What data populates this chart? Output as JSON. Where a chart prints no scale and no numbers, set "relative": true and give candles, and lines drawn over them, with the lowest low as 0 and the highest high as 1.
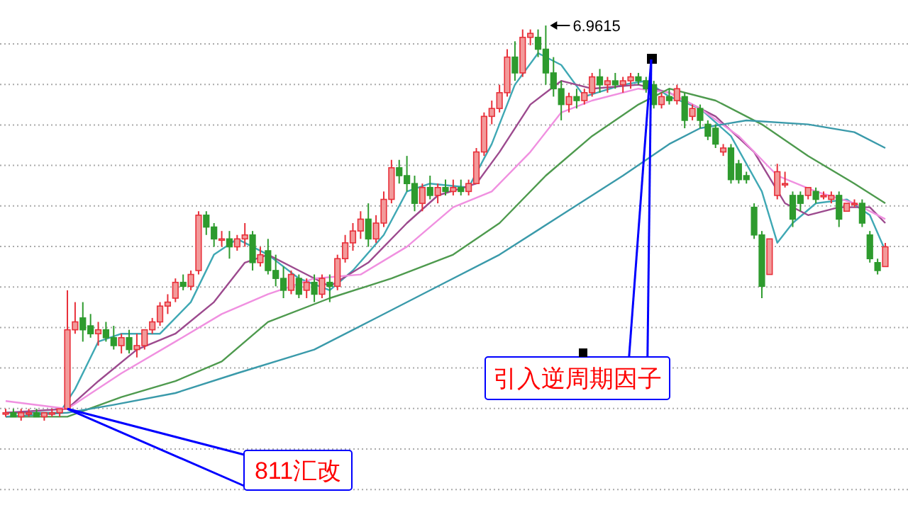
{
  "chart_data": {
    "type": "candlestick",
    "relative": true,
    "grid": true,
    "categories": [
      null,
      null,
      null,
      null,
      null,
      null,
      null,
      null,
      null,
      null,
      null,
      null,
      null,
      null,
      null,
      null,
      null,
      null,
      null,
      null,
      null,
      null,
      null,
      null,
      null,
      null,
      null,
      null,
      null,
      null,
      null,
      null,
      null,
      null,
      null,
      null,
      null,
      null,
      null,
      null,
      null,
      null,
      null,
      null,
      null,
      null,
      null,
      null,
      null,
      null,
      null,
      null,
      null,
      null,
      null,
      null,
      null,
      null,
      null,
      null,
      null,
      null,
      null,
      null,
      null,
      null,
      null,
      null,
      null,
      null,
      null,
      null,
      null,
      null,
      null,
      null,
      null,
      null,
      null,
      null,
      null,
      null,
      null,
      null,
      null,
      null,
      null,
      null,
      null,
      null,
      null,
      null,
      null,
      null,
      null,
      null,
      null,
      null,
      null,
      null,
      null,
      null,
      null,
      null,
      null,
      null,
      null,
      null,
      null,
      null,
      null,
      null,
      null,
      null,
      null
    ],
    "ohlc": [
      [
        0.02,
        0.03,
        0.01,
        0.02
      ],
      [
        0.02,
        0.03,
        0.01,
        0.01
      ],
      [
        0.01,
        0.03,
        0.0,
        0.02
      ],
      [
        0.02,
        0.03,
        0.01,
        0.02
      ],
      [
        0.02,
        0.03,
        0.01,
        0.01
      ],
      [
        0.01,
        0.02,
        0.0,
        0.02
      ],
      [
        0.02,
        0.03,
        0.01,
        0.02
      ],
      [
        0.02,
        0.03,
        0.01,
        0.03
      ],
      [
        0.03,
        0.33,
        0.03,
        0.23
      ],
      [
        0.23,
        0.3,
        0.22,
        0.25
      ],
      [
        0.26,
        0.3,
        0.2,
        0.23
      ],
      [
        0.24,
        0.27,
        0.21,
        0.22
      ],
      [
        0.22,
        0.25,
        0.19,
        0.23
      ],
      [
        0.23,
        0.25,
        0.2,
        0.21
      ],
      [
        0.21,
        0.24,
        0.18,
        0.19
      ],
      [
        0.19,
        0.22,
        0.17,
        0.21
      ],
      [
        0.21,
        0.23,
        0.17,
        0.18
      ],
      [
        0.18,
        0.22,
        0.16,
        0.19
      ],
      [
        0.19,
        0.23,
        0.18,
        0.23
      ],
      [
        0.23,
        0.26,
        0.22,
        0.25
      ],
      [
        0.25,
        0.3,
        0.24,
        0.29
      ],
      [
        0.29,
        0.32,
        0.27,
        0.3
      ],
      [
        0.31,
        0.36,
        0.3,
        0.35
      ],
      [
        0.35,
        0.37,
        0.33,
        0.34
      ],
      [
        0.34,
        0.38,
        0.33,
        0.37
      ],
      [
        0.38,
        0.53,
        0.37,
        0.52
      ],
      [
        0.52,
        0.53,
        0.47,
        0.49
      ],
      [
        0.49,
        0.5,
        0.44,
        0.46
      ],
      [
        0.46,
        0.48,
        0.44,
        0.46
      ],
      [
        0.46,
        0.48,
        0.41,
        0.44
      ],
      [
        0.44,
        0.47,
        0.43,
        0.46
      ],
      [
        0.46,
        0.5,
        0.44,
        0.47
      ],
      [
        0.47,
        0.48,
        0.38,
        0.4
      ],
      [
        0.4,
        0.44,
        0.39,
        0.42
      ],
      [
        0.43,
        0.46,
        0.37,
        0.38
      ],
      [
        0.38,
        0.42,
        0.34,
        0.36
      ],
      [
        0.36,
        0.39,
        0.31,
        0.33
      ],
      [
        0.33,
        0.38,
        0.32,
        0.37
      ],
      [
        0.36,
        0.37,
        0.31,
        0.32
      ],
      [
        0.33,
        0.36,
        0.31,
        0.35
      ],
      [
        0.35,
        0.37,
        0.3,
        0.32
      ],
      [
        0.32,
        0.37,
        0.31,
        0.36
      ],
      [
        0.35,
        0.37,
        0.3,
        0.34
      ],
      [
        0.34,
        0.42,
        0.33,
        0.41
      ],
      [
        0.41,
        0.47,
        0.4,
        0.45
      ],
      [
        0.45,
        0.5,
        0.43,
        0.48
      ],
      [
        0.48,
        0.53,
        0.46,
        0.51
      ],
      [
        0.51,
        0.55,
        0.44,
        0.46
      ],
      [
        0.46,
        0.52,
        0.45,
        0.5
      ],
      [
        0.5,
        0.58,
        0.49,
        0.56
      ],
      [
        0.56,
        0.66,
        0.55,
        0.64
      ],
      [
        0.64,
        0.66,
        0.6,
        0.62
      ],
      [
        0.62,
        0.67,
        0.58,
        0.6
      ],
      [
        0.6,
        0.62,
        0.53,
        0.55
      ],
      [
        0.55,
        0.6,
        0.53,
        0.59
      ],
      [
        0.59,
        0.62,
        0.56,
        0.57
      ],
      [
        0.57,
        0.6,
        0.55,
        0.59
      ],
      [
        0.59,
        0.61,
        0.57,
        0.58
      ],
      [
        0.58,
        0.61,
        0.57,
        0.59
      ],
      [
        0.59,
        0.61,
        0.57,
        0.58
      ],
      [
        0.58,
        0.61,
        0.57,
        0.6
      ],
      [
        0.6,
        0.69,
        0.6,
        0.68
      ],
      [
        0.68,
        0.78,
        0.67,
        0.77
      ],
      [
        0.77,
        0.81,
        0.75,
        0.79
      ],
      [
        0.79,
        0.85,
        0.78,
        0.83
      ],
      [
        0.83,
        0.94,
        0.82,
        0.92
      ],
      [
        0.92,
        0.96,
        0.86,
        0.88
      ],
      [
        0.88,
        0.99,
        0.87,
        0.97
      ],
      [
        0.97,
        0.99,
        0.95,
        0.98
      ],
      [
        0.97,
        0.99,
        0.92,
        0.94
      ],
      [
        0.94,
        1.0,
        0.85,
        0.88
      ],
      [
        0.88,
        0.92,
        0.82,
        0.84
      ],
      [
        0.84,
        0.86,
        0.76,
        0.8
      ],
      [
        0.8,
        0.83,
        0.78,
        0.82
      ],
      [
        0.82,
        0.84,
        0.79,
        0.81
      ],
      [
        0.81,
        0.84,
        0.8,
        0.83
      ],
      [
        0.83,
        0.88,
        0.82,
        0.87
      ],
      [
        0.87,
        0.89,
        0.83,
        0.85
      ],
      [
        0.85,
        0.87,
        0.83,
        0.86
      ],
      [
        0.86,
        0.88,
        0.84,
        0.85
      ],
      [
        0.85,
        0.87,
        0.83,
        0.86
      ],
      [
        0.86,
        0.88,
        0.84,
        0.87
      ],
      [
        0.87,
        0.88,
        0.85,
        0.86
      ],
      [
        0.86,
        0.87,
        0.83,
        0.84
      ],
      [
        0.85,
        0.86,
        0.79,
        0.8
      ],
      [
        0.8,
        0.83,
        0.79,
        0.82
      ],
      [
        0.82,
        0.84,
        0.8,
        0.81
      ],
      [
        0.81,
        0.85,
        0.8,
        0.84
      ],
      [
        0.82,
        0.83,
        0.74,
        0.76
      ],
      [
        0.77,
        0.8,
        0.76,
        0.79
      ],
      [
        0.79,
        0.8,
        0.74,
        0.76
      ],
      [
        0.75,
        0.76,
        0.71,
        0.72
      ],
      [
        0.74,
        0.75,
        0.69,
        0.7
      ],
      [
        0.68,
        0.7,
        0.67,
        0.69
      ],
      [
        0.69,
        0.7,
        0.6,
        0.61
      ],
      [
        0.65,
        0.66,
        0.6,
        0.61
      ],
      [
        0.62,
        0.63,
        0.6,
        0.61
      ],
      [
        0.54,
        0.55,
        0.46,
        0.47
      ],
      [
        0.47,
        0.48,
        0.31,
        0.34
      ],
      [
        0.37,
        0.46,
        0.37,
        0.46
      ],
      [
        0.57,
        0.65,
        0.56,
        0.63
      ],
      [
        0.6,
        0.63,
        0.59,
        0.6
      ],
      [
        0.57,
        0.58,
        0.49,
        0.51
      ],
      [
        0.57,
        0.58,
        0.53,
        0.55
      ],
      [
        0.57,
        0.59,
        0.56,
        0.59
      ],
      [
        0.58,
        0.59,
        0.55,
        0.56
      ],
      [
        0.57,
        0.58,
        0.56,
        0.57
      ],
      [
        0.56,
        0.58,
        0.55,
        0.57
      ],
      [
        0.57,
        0.58,
        0.49,
        0.51
      ],
      [
        0.53,
        0.55,
        0.53,
        0.55
      ],
      [
        0.55,
        0.56,
        0.54,
        0.55
      ],
      [
        0.55,
        0.56,
        0.49,
        0.5
      ],
      [
        0.47,
        0.48,
        0.4,
        0.41
      ],
      [
        0.4,
        0.41,
        0.37,
        0.38
      ],
      [
        0.39,
        0.45,
        0.39,
        0.44
      ]
    ],
    "series": [
      {
        "type": "line",
        "color": "#3fa8b4",
        "values": [
          0.02,
          null,
          null,
          null,
          null,
          null,
          null,
          0.02,
          null,
          0.08,
          null,
          null,
          0.2,
          null,
          null,
          0.22,
          null,
          null,
          null,
          null,
          0.22,
          null,
          null,
          null,
          0.3,
          null,
          null,
          0.42,
          null,
          null,
          0.46,
          null,
          null,
          null,
          0.42,
          null,
          null,
          null,
          0.36,
          null,
          null,
          null,
          0.33,
          null,
          null,
          0.38,
          null,
          null,
          null,
          0.47,
          null,
          null,
          0.58,
          null,
          null,
          0.6,
          null,
          null,
          null,
          null,
          0.59,
          null,
          null,
          0.7,
          null,
          null,
          0.85,
          null,
          null,
          0.93,
          null,
          null,
          0.9,
          null,
          null,
          0.82,
          null,
          null,
          null,
          null,
          0.85,
          null,
          null,
          0.86,
          null,
          null,
          0.82,
          null,
          null,
          null,
          0.79,
          null,
          null,
          null,
          0.72,
          null,
          null,
          null,
          0.58,
          null,
          0.45,
          null,
          0.5,
          null,
          null,
          0.55,
          null,
          null,
          null,
          0.56,
          null,
          null,
          0.52,
          null,
          0.43
        ]
      },
      {
        "type": "line",
        "color": "#9c4a8e",
        "values": [
          0.02,
          null,
          null,
          null,
          null,
          null,
          null,
          null,
          0.03,
          null,
          null,
          null,
          0.1,
          null,
          null,
          null,
          null,
          0.18,
          null,
          null,
          null,
          null,
          0.22,
          null,
          null,
          null,
          null,
          0.3,
          null,
          null,
          null,
          0.4,
          null,
          null,
          0.42,
          null,
          null,
          null,
          0.38,
          null,
          null,
          null,
          0.34,
          null,
          null,
          null,
          null,
          0.4,
          null,
          null,
          null,
          null,
          0.5,
          null,
          null,
          null,
          0.57,
          null,
          null,
          null,
          null,
          0.6,
          null,
          null,
          0.68,
          null,
          null,
          null,
          0.8,
          null,
          null,
          null,
          0.86,
          null,
          null,
          null,
          0.84,
          null,
          null,
          null,
          null,
          null,
          0.85,
          null,
          null,
          null,
          0.83,
          null,
          null,
          null,
          null,
          null,
          0.77,
          null,
          null,
          null,
          null,
          0.68,
          null,
          null,
          null,
          0.55,
          null,
          null,
          0.52,
          null,
          null,
          null,
          0.54,
          null,
          null,
          null,
          0.54,
          null,
          0.5
        ]
      },
      {
        "type": "line",
        "color": "#f090e0",
        "values": [
          0.05,
          null,
          null,
          null,
          null,
          null,
          null,
          null,
          0.03,
          null,
          null,
          null,
          null,
          null,
          null,
          0.12,
          null,
          null,
          null,
          null,
          null,
          null,
          0.2,
          null,
          null,
          null,
          null,
          null,
          0.27,
          null,
          null,
          null,
          null,
          null,
          0.32,
          null,
          null,
          null,
          null,
          null,
          0.36,
          null,
          null,
          null,
          null,
          null,
          0.37,
          null,
          null,
          null,
          null,
          null,
          0.44,
          null,
          null,
          null,
          null,
          null,
          0.54,
          null,
          null,
          null,
          null,
          0.58,
          null,
          null,
          null,
          null,
          0.68,
          null,
          null,
          null,
          0.78,
          null,
          null,
          null,
          0.81,
          null,
          null,
          null,
          null,
          null,
          0.84,
          null,
          null,
          null,
          0.83,
          null,
          null,
          null,
          0.79,
          null,
          null,
          null,
          null,
          0.72,
          null,
          null,
          null,
          null,
          0.62,
          null,
          null,
          null,
          null,
          0.58,
          null,
          null,
          null,
          null,
          0.55,
          null,
          null,
          null,
          0.51
        ]
      },
      {
        "type": "line",
        "color": "#4e9a4e",
        "values": [
          0.01,
          null,
          null,
          null,
          null,
          null,
          null,
          null,
          0.01,
          null,
          null,
          null,
          null,
          null,
          null,
          0.06,
          null,
          null,
          null,
          null,
          null,
          null,
          0.1,
          null,
          null,
          null,
          null,
          null,
          0.15,
          null,
          null,
          null,
          null,
          null,
          0.25,
          null,
          null,
          null,
          null,
          null,
          null,
          null,
          0.31,
          null,
          null,
          null,
          null,
          null,
          null,
          null,
          0.36,
          null,
          null,
          null,
          null,
          null,
          null,
          null,
          0.42,
          null,
          null,
          null,
          null,
          null,
          0.5,
          null,
          null,
          null,
          null,
          null,
          0.62,
          null,
          null,
          null,
          null,
          null,
          0.72,
          null,
          null,
          null,
          null,
          null,
          0.8,
          null,
          null,
          null,
          0.84,
          null,
          null,
          null,
          null,
          null,
          0.81,
          null,
          null,
          null,
          null,
          null,
          0.75,
          null,
          null,
          null,
          null,
          null,
          0.67,
          null,
          null,
          null,
          null,
          null,
          0.6,
          null,
          null,
          null,
          0.55
        ]
      },
      {
        "type": "line",
        "color": "#3a9aaa",
        "values": [
          0.01,
          null,
          null,
          null,
          null,
          null,
          null,
          null,
          0.02,
          null,
          null,
          null,
          null,
          null,
          0.04,
          null,
          null,
          null,
          null,
          null,
          null,
          null,
          0.07,
          null,
          null,
          null,
          null,
          null,
          null,
          null,
          0.12,
          null,
          null,
          null,
          null,
          null,
          null,
          null,
          null,
          null,
          0.18,
          null,
          null,
          null,
          null,
          null,
          null,
          null,
          0.26,
          null,
          null,
          null,
          null,
          null,
          null,
          null,
          0.34,
          null,
          null,
          null,
          null,
          null,
          null,
          null,
          0.42,
          null,
          null,
          null,
          null,
          null,
          null,
          null,
          0.52,
          null,
          null,
          null,
          null,
          null,
          null,
          null,
          0.62,
          null,
          null,
          null,
          null,
          null,
          0.7,
          null,
          null,
          null,
          0.74,
          null,
          null,
          null,
          null,
          null,
          0.76,
          null,
          null,
          null,
          null,
          null,
          null,
          null,
          0.75,
          null,
          null,
          null,
          null,
          null,
          0.73,
          null,
          null,
          null,
          0.69
        ]
      }
    ],
    "annotations": [
      "6.9615",
      "引入逆周期因子",
      "811汇改"
    ]
  }
}
